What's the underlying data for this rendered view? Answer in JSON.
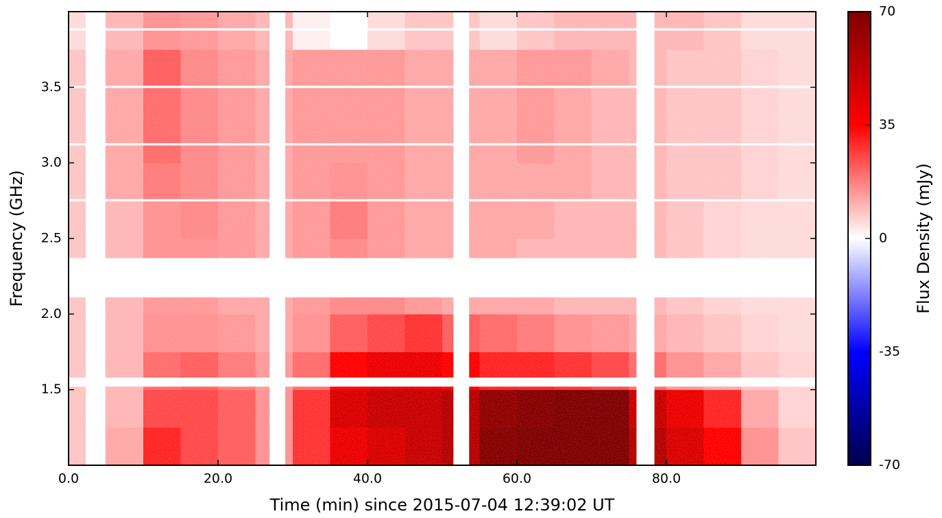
{
  "chart_data": {
    "type": "heatmap",
    "xlabel": "Time (min) since 2015-07-04 12:39:02 UT",
    "ylabel": "Frequency (GHz)",
    "colorbar_label": "Flux Density (mJy)",
    "xlim": [
      0,
      100
    ],
    "ylim": [
      1.0,
      4.0
    ],
    "xticks": [
      {
        "value": 0,
        "label": "0.0"
      },
      {
        "value": 20,
        "label": "20.0"
      },
      {
        "value": 40,
        "label": "40.0"
      },
      {
        "value": 60,
        "label": "60.0"
      },
      {
        "value": 80,
        "label": "80.0"
      }
    ],
    "yticks": [
      {
        "value": 1.5,
        "label": "1.5"
      },
      {
        "value": 2,
        "label": "2.0"
      },
      {
        "value": 2.5,
        "label": "2.5"
      },
      {
        "value": 3,
        "label": "3.0"
      },
      {
        "value": 3.5,
        "label": "3.5"
      }
    ],
    "clim": [
      -70,
      70
    ],
    "cticks": [
      -70,
      -35,
      0,
      35,
      70
    ],
    "colormap": [
      "#00004c",
      "#0000ff",
      "#ffffff",
      "#ff0000",
      "#7f0000"
    ],
    "xbins": [
      0,
      5,
      10,
      15,
      20,
      25,
      30,
      35,
      40,
      45,
      50,
      55,
      60,
      65,
      70,
      75,
      80,
      85,
      90,
      95,
      100
    ],
    "ybins": [
      1.0,
      1.25,
      1.5,
      1.75,
      2.0,
      2.25,
      2.5,
      2.75,
      3.0,
      3.25,
      3.5,
      3.75,
      4.0
    ],
    "z": [
      [
        8,
        12,
        30,
        25,
        22,
        15,
        28,
        40,
        45,
        50,
        55,
        68,
        70,
        70,
        70,
        55,
        45,
        35,
        15,
        8
      ],
      [
        8,
        10,
        25,
        25,
        22,
        15,
        28,
        45,
        50,
        50,
        55,
        65,
        68,
        70,
        70,
        50,
        40,
        30,
        12,
        6
      ],
      [
        8,
        10,
        20,
        22,
        18,
        14,
        20,
        35,
        40,
        40,
        35,
        30,
        30,
        28,
        25,
        20,
        15,
        12,
        8,
        6
      ],
      [
        8,
        10,
        15,
        15,
        14,
        12,
        15,
        22,
        25,
        28,
        22,
        20,
        18,
        15,
        14,
        12,
        10,
        8,
        6,
        5
      ],
      [
        8,
        10,
        14,
        14,
        12,
        12,
        14,
        16,
        16,
        14,
        12,
        12,
        12,
        10,
        10,
        10,
        8,
        6,
        5,
        5
      ],
      [
        8,
        10,
        15,
        15,
        14,
        12,
        14,
        16,
        14,
        12,
        12,
        12,
        10,
        10,
        10,
        10,
        8,
        6,
        5,
        5
      ],
      [
        8,
        10,
        15,
        16,
        14,
        12,
        14,
        18,
        14,
        12,
        12,
        12,
        12,
        10,
        10,
        10,
        8,
        6,
        5,
        5
      ],
      [
        8,
        12,
        18,
        16,
        14,
        12,
        14,
        15,
        14,
        12,
        12,
        12,
        12,
        12,
        10,
        10,
        8,
        8,
        6,
        5
      ],
      [
        8,
        12,
        20,
        16,
        14,
        12,
        14,
        14,
        14,
        12,
        12,
        12,
        14,
        12,
        10,
        10,
        8,
        8,
        6,
        5
      ],
      [
        8,
        12,
        20,
        16,
        14,
        12,
        14,
        14,
        14,
        12,
        12,
        12,
        14,
        12,
        10,
        10,
        8,
        8,
        6,
        5
      ],
      [
        8,
        12,
        22,
        16,
        14,
        12,
        14,
        14,
        14,
        12,
        12,
        12,
        14,
        14,
        12,
        10,
        8,
        8,
        6,
        5
      ],
      [
        5,
        10,
        15,
        14,
        12,
        10,
        2,
        0,
        5,
        8,
        8,
        5,
        8,
        10,
        10,
        10,
        10,
        8,
        5,
        5
      ]
    ],
    "time_gaps": [
      [
        2.3,
        4.9
      ],
      [
        26.9,
        29.0
      ],
      [
        51.5,
        53.6
      ],
      [
        76.0,
        78.4
      ]
    ],
    "freq_gaps": [
      [
        2.11,
        2.37
      ],
      [
        1.52,
        1.58
      ],
      [
        3.495,
        3.51
      ],
      [
        3.115,
        3.13
      ],
      [
        2.745,
        2.76
      ],
      [
        3.875,
        3.89
      ]
    ]
  }
}
